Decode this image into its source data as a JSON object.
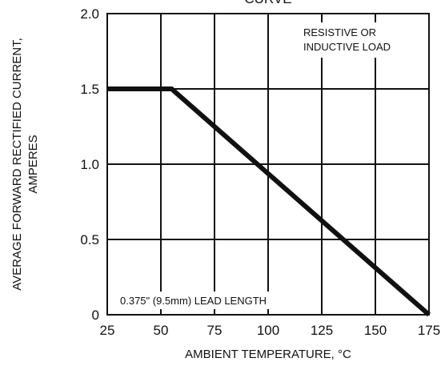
{
  "chart_data": {
    "type": "line",
    "title": "CURVE",
    "xlabel": "AMBIENT TEMPERATURE, °C",
    "ylabel_lines": [
      "AVERAGE FORWARD RECTIFIED CURRENT,",
      "AMPERES"
    ],
    "xlim": [
      25,
      175
    ],
    "ylim": [
      0,
      2.0
    ],
    "x_ticks": [
      25,
      50,
      75,
      100,
      125,
      150,
      175
    ],
    "y_ticks": [
      0,
      0.5,
      1.0,
      1.5,
      2.0
    ],
    "x_tick_labels": [
      "25",
      "50",
      "75",
      "100",
      "125",
      "150",
      "175"
    ],
    "y_tick_labels": [
      "0",
      "0.5",
      "1.0",
      "1.5",
      "2.0"
    ],
    "grid": true,
    "annotations": {
      "load_lines": [
        "RESISTIVE OR",
        "INDUCTIVE LOAD"
      ],
      "lead": "0.375\" (9.5mm) LEAD LENGTH"
    },
    "series": [
      {
        "x": [
          25,
          55,
          175
        ],
        "y": [
          1.5,
          1.5,
          0
        ]
      }
    ]
  }
}
